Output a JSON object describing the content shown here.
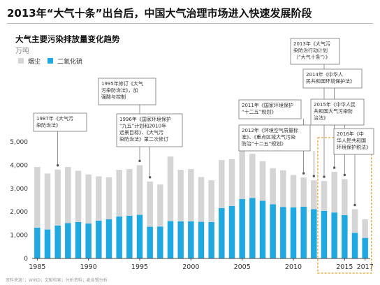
{
  "header": {
    "title": "2013年“大气十条”出台后，中国大气治理市场进入快速发展阶段"
  },
  "chart_header": {
    "subtitle": "大气主要污染排放量变化趋势",
    "unit": "万吨"
  },
  "source_note": "资料来源：；WIND；文献检索；分析资料；麦肯锡分析",
  "colors": {
    "dust": "#d5d5d5",
    "so2": "#1fa9e0",
    "highlight_box": "#e2a23a",
    "callout_border": "#777777"
  },
  "chart_data": {
    "type": "bar",
    "stacked": true,
    "years": [
      1985,
      1986,
      1987,
      1988,
      1989,
      1990,
      1991,
      1992,
      1993,
      1994,
      1995,
      1996,
      1997,
      1998,
      1999,
      2000,
      2001,
      2002,
      2003,
      2004,
      2005,
      2006,
      2007,
      2008,
      2009,
      2010,
      2011,
      2012,
      2013,
      2014,
      2015,
      2016,
      2017
    ],
    "x_tick_labels": [
      "1985",
      "1990",
      "1995",
      "2000",
      "2005",
      "2010",
      "2015",
      "2017"
    ],
    "y_tick_labels": [
      "0",
      "1,000",
      "2,000",
      "3,000",
      "4,000",
      "5,000"
    ],
    "ylim": [
      0,
      5000
    ],
    "series": [
      {
        "name": "二氧化硫",
        "values": [
          1320,
          1240,
          1410,
          1520,
          1560,
          1500,
          1620,
          1680,
          1800,
          1830,
          1870,
          1360,
          1370,
          1600,
          1590,
          1590,
          1570,
          1560,
          2160,
          2250,
          2550,
          2590,
          2470,
          2320,
          2210,
          2190,
          2220,
          2110,
          2040,
          1970,
          1860,
          1100,
          880
        ]
      },
      {
        "name": "烟尘",
        "values": [
          2600,
          2400,
          2400,
          2400,
          2200,
          2100,
          1900,
          1800,
          2000,
          2000,
          2130,
          1940,
          1800,
          2770,
          2210,
          2240,
          1920,
          1790,
          2060,
          2010,
          2100,
          1900,
          1700,
          1550,
          1570,
          1390,
          1250,
          1240,
          1280,
          1740,
          1540,
          1010,
          800
        ]
      }
    ],
    "legend": [
      "烟尘",
      "二氧化硫"
    ],
    "legend_position": "top-left",
    "grid": false,
    "annotations": [
      {
        "text": [
          "1987年《大气污",
          "染防治法》"
        ],
        "year": 1987
      },
      {
        "text": [
          "1995年修订《大气",
          "污染防治法》，加",
          "强酸与控制"
        ],
        "year": 1995
      },
      {
        "text": [
          "1996年《国家环境保护",
          "“九五”计划和2010年",
          "远景目标》、《大气污",
          "染防治法》第二次修订"
        ],
        "year": 1996
      },
      {
        "text": [
          "2011年《国家环境保护",
          "“十二五”规划》"
        ],
        "year": 2011
      },
      {
        "text": [
          "2012年《环境空气质量标",
          "准》、《重点区域大气污染",
          "防治“十二五”规划》"
        ],
        "year": 2012
      },
      {
        "text": [
          "2013年《大气污",
          "染防治行动计划",
          "（“大气十条”）》"
        ],
        "year": 2013
      },
      {
        "text": [
          "2014年《中华人",
          "民共和国环境保护法》"
        ],
        "year": 2014
      },
      {
        "text": [
          "2015年《中华人民",
          "共和国大气污染防",
          "治法》"
        ],
        "year": 2015
      },
      {
        "text": [
          "2016年《中",
          "华人民共和国",
          "环境保护税法》"
        ],
        "year": 2016
      }
    ]
  }
}
